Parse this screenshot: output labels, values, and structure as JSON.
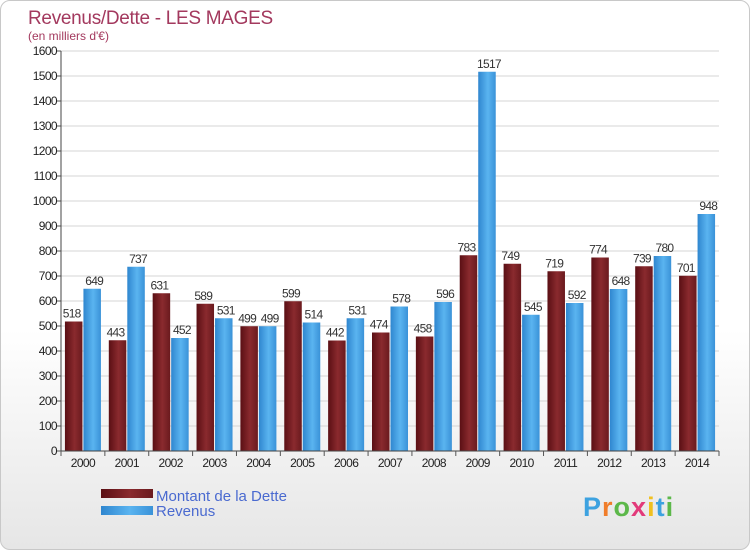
{
  "chart_data": {
    "type": "bar",
    "title": "Revenus/Dette - LES MAGES",
    "subtitle": "(en milliers d'€)",
    "categories": [
      "2000",
      "2001",
      "2002",
      "2003",
      "2004",
      "2005",
      "2006",
      "2007",
      "2008",
      "2009",
      "2010",
      "2011",
      "2012",
      "2013",
      "2014"
    ],
    "series": [
      {
        "name": "Montant de la Dette",
        "color": "#7a1f24",
        "values": [
          518,
          443,
          631,
          589,
          499,
          599,
          442,
          474,
          458,
          783,
          749,
          719,
          774,
          739,
          701
        ]
      },
      {
        "name": "Revenus",
        "color": "#4aa3e6",
        "values": [
          649,
          737,
          452,
          531,
          499,
          514,
          531,
          578,
          596,
          1517,
          545,
          592,
          648,
          780,
          948
        ]
      }
    ],
    "ylim": [
      0,
      1600
    ],
    "yticks": [
      0,
      100,
      200,
      300,
      400,
      500,
      600,
      700,
      800,
      900,
      1000,
      1100,
      1200,
      1300,
      1400,
      1500,
      1600
    ],
    "grid": true,
    "legend_position": "bottom-left"
  },
  "brand": {
    "letters": [
      "P",
      "r",
      "o",
      "x",
      "i",
      "t",
      "i"
    ],
    "colors": [
      "#3da2e0",
      "#f07d2a",
      "#5cb84a",
      "#e23a7a",
      "#f0c020",
      "#3da2e0",
      "#5cb84a"
    ]
  }
}
